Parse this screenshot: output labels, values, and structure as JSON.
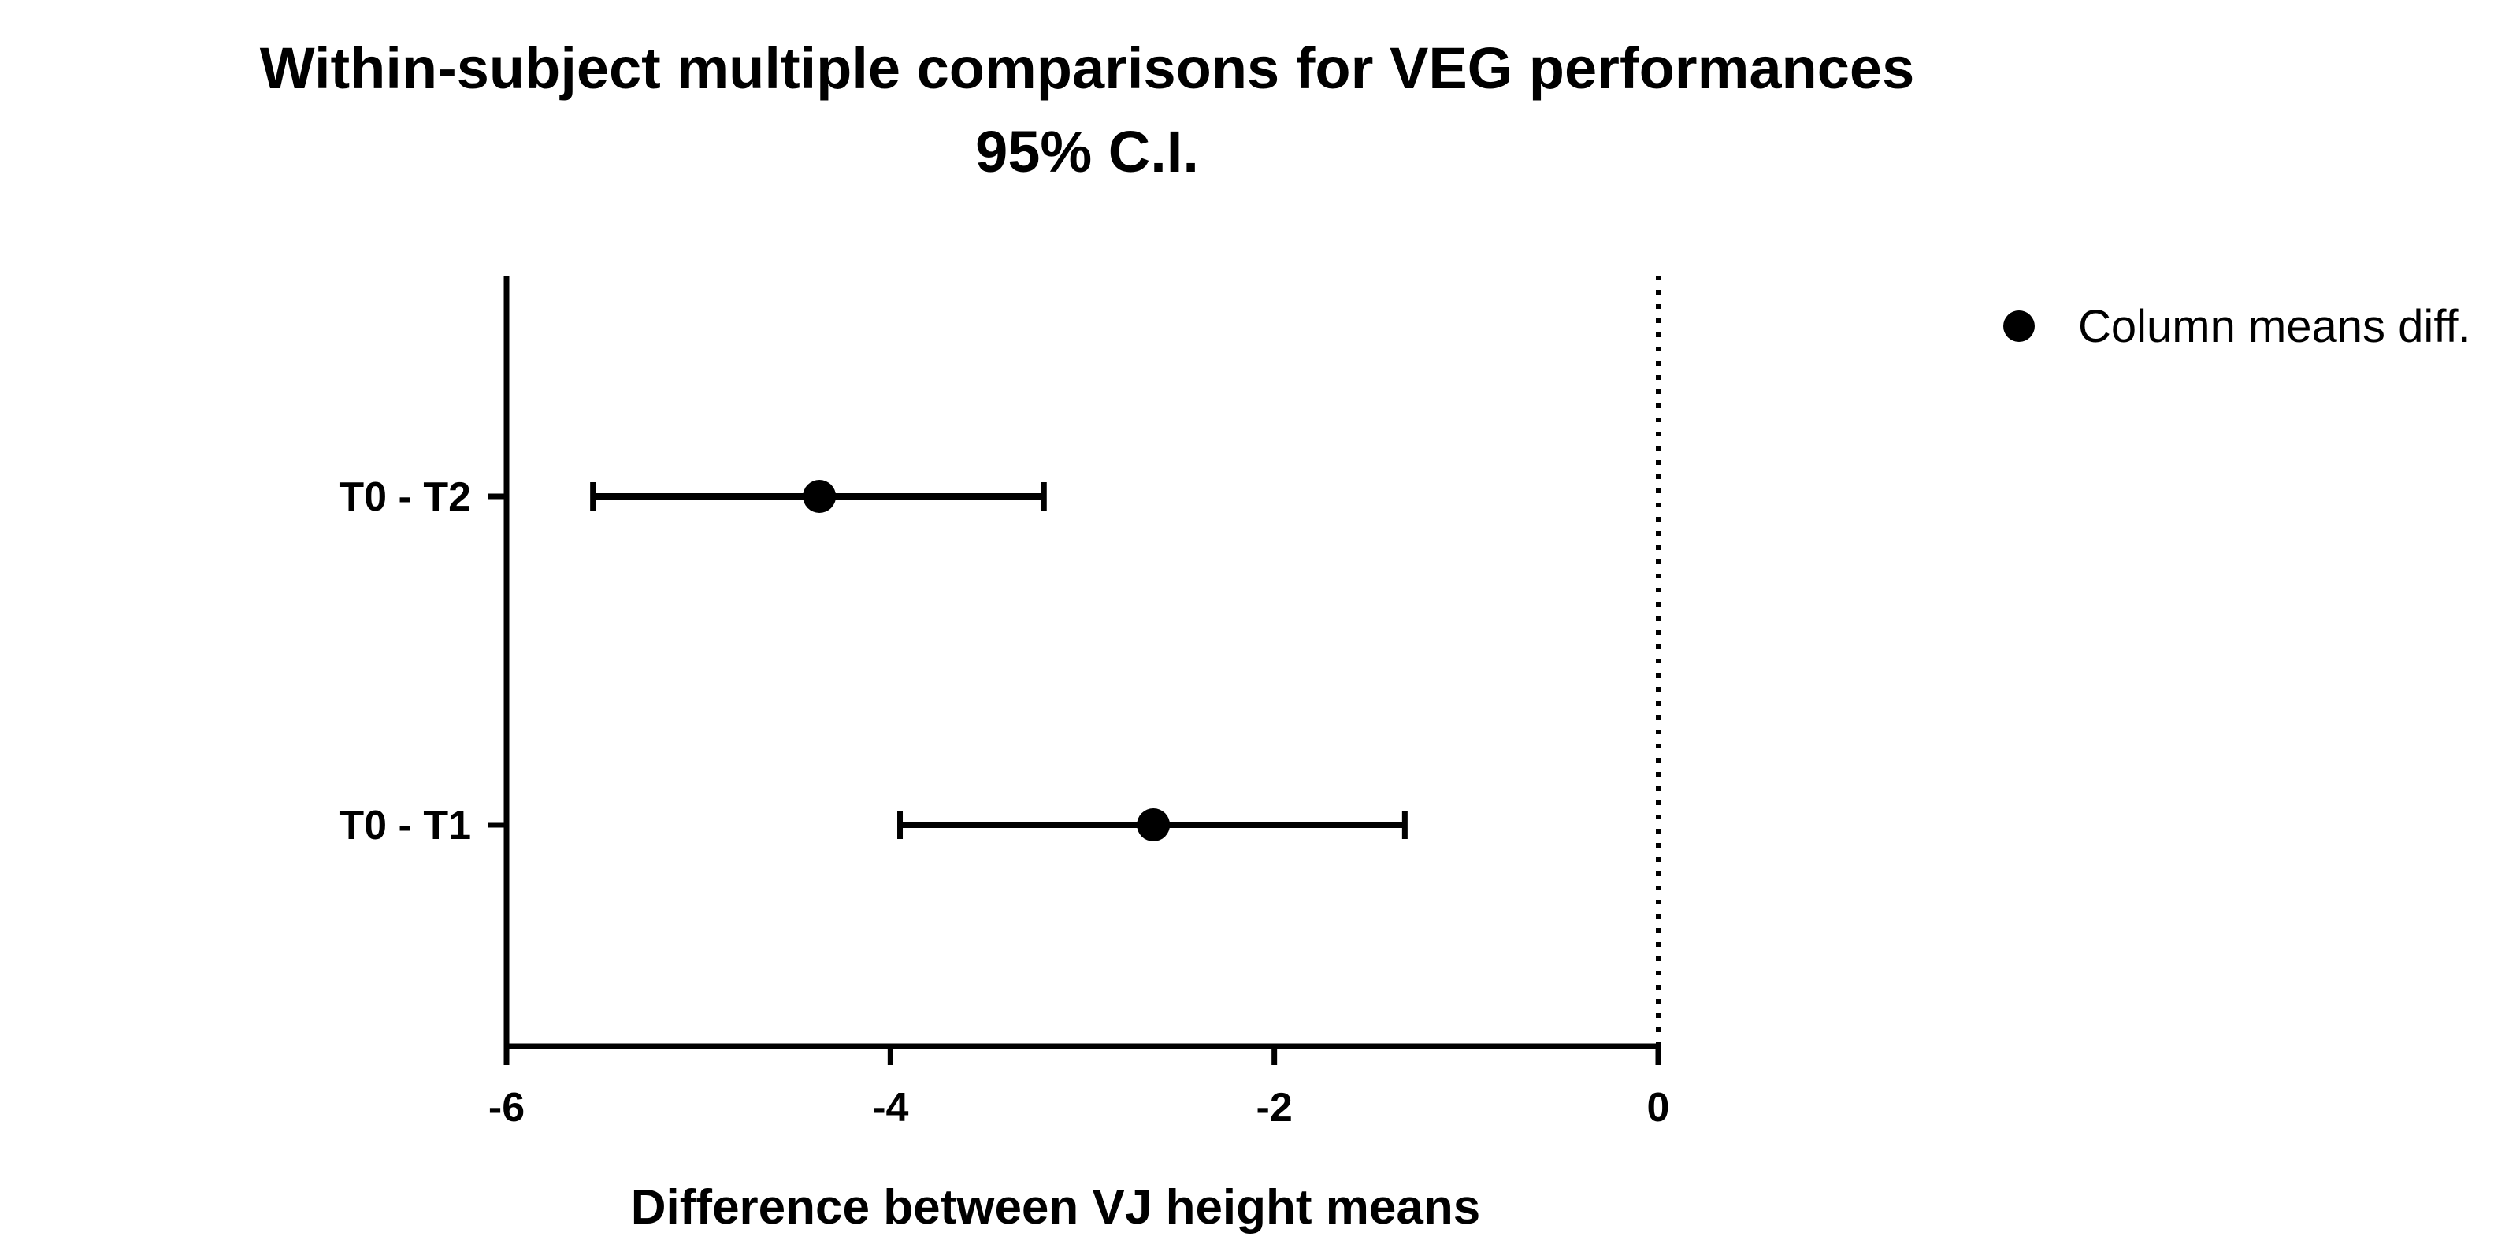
{
  "chart_data": {
    "type": "scatter",
    "title": "Within-subject multiple comparisons for VEG performances",
    "subtitle": "95% C.I.",
    "xlabel": "Difference between VJ height means",
    "ylabel": "",
    "xlim": [
      -6,
      0
    ],
    "xticks": [
      -6,
      -4,
      -2,
      0
    ],
    "reference_line": 0,
    "series": [
      {
        "name": "Column means diff.",
        "points": [
          {
            "label": "T0 - T2",
            "mean": -4.37,
            "ci_low": -5.55,
            "ci_high": -3.2
          },
          {
            "label": "T0 - T1",
            "mean": -2.63,
            "ci_low": -3.95,
            "ci_high": -1.32
          }
        ]
      }
    ],
    "legend_position": "top-right",
    "colors": {
      "mark": "#000000",
      "axis": "#000000"
    }
  }
}
